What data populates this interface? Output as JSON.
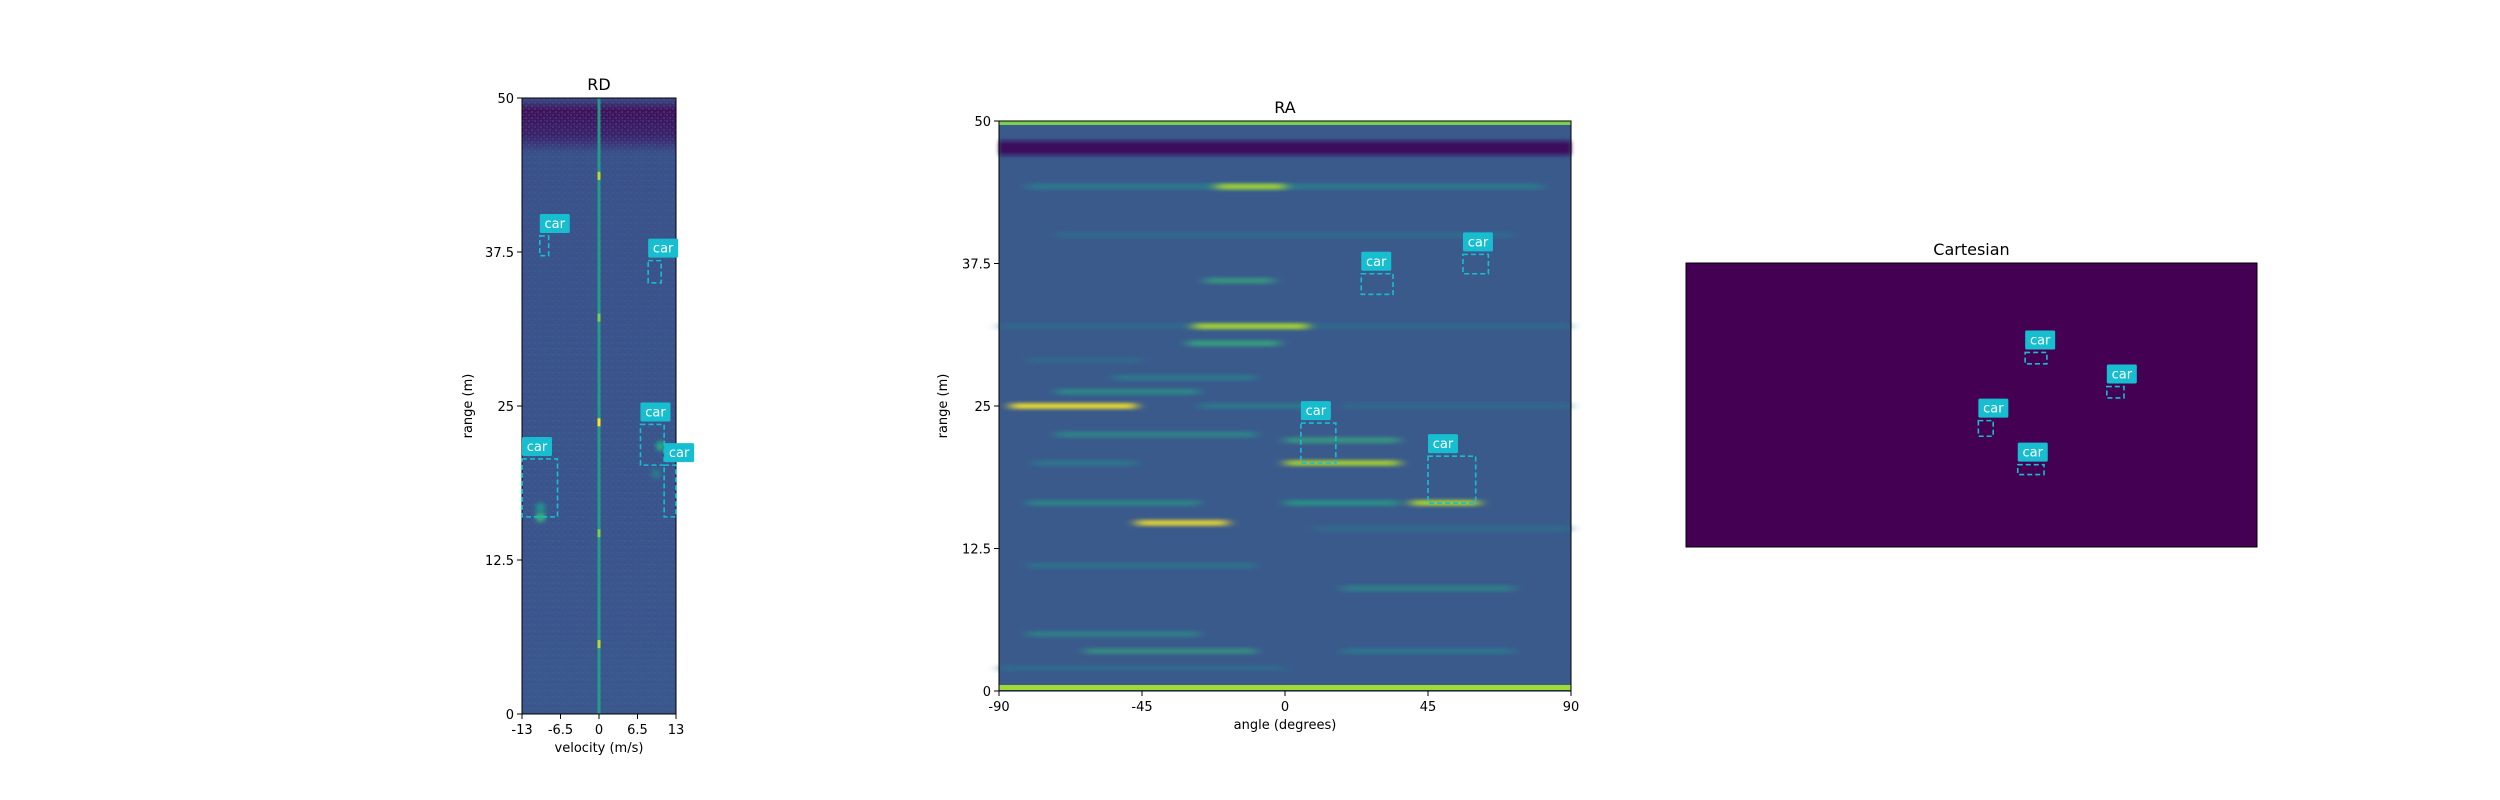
{
  "chart_data": [
    {
      "type": "heatmap",
      "title": "RD",
      "xlabel": "velocity (m/s)",
      "ylabel": "range (m)",
      "xlim": [
        -13,
        13
      ],
      "ylim": [
        0,
        50
      ],
      "xticks": [
        -13,
        -6.5,
        0,
        6.5,
        13
      ],
      "xtick_labels": [
        "-13",
        "-6.5",
        "0",
        "6.5",
        "13"
      ],
      "yticks": [
        0,
        12.5,
        25,
        37.5,
        50
      ],
      "ytick_labels": [
        "0",
        "12.5",
        "25",
        "37.5",
        "50"
      ],
      "colormap": "viridis",
      "detections": [
        {
          "label": "car",
          "x": [
            -10,
            -8.5
          ],
          "y": [
            37.2,
            38.8
          ],
          "color": "#17becf"
        },
        {
          "label": "car",
          "x": [
            8.3,
            10.5
          ],
          "y": [
            35,
            36.8
          ],
          "color": "#17becf"
        },
        {
          "label": "car",
          "x": [
            7,
            11
          ],
          "y": [
            20.2,
            23.5
          ],
          "color": "#17becf"
        },
        {
          "label": "car",
          "x": [
            -13,
            -7
          ],
          "y": [
            16,
            20.7
          ],
          "color": "#17becf"
        },
        {
          "label": "car",
          "x": [
            11,
            13
          ],
          "y": [
            16,
            20.2
          ],
          "color": "#17becf"
        }
      ]
    },
    {
      "type": "heatmap",
      "title": "RA",
      "xlabel": "angle (degrees)",
      "ylabel": "range (m)",
      "xlim": [
        -90,
        90
      ],
      "ylim": [
        0,
        50
      ],
      "xticks": [
        -90,
        -45,
        0,
        45,
        90
      ],
      "xtick_labels": [
        "-90",
        "-45",
        "0",
        "45",
        "90"
      ],
      "yticks": [
        0,
        12.5,
        25,
        37.5,
        50
      ],
      "ytick_labels": [
        "0",
        "12.5",
        "25",
        "37.5",
        "50"
      ],
      "colormap": "viridis",
      "detections": [
        {
          "label": "car",
          "x": [
            24,
            34
          ],
          "y": [
            34.8,
            36.6
          ],
          "color": "#17becf"
        },
        {
          "label": "car",
          "x": [
            56,
            64
          ],
          "y": [
            36.6,
            38.3
          ],
          "color": "#17becf"
        },
        {
          "label": "car",
          "x": [
            5,
            16
          ],
          "y": [
            20,
            23.5
          ],
          "color": "#17becf"
        },
        {
          "label": "car",
          "x": [
            45,
            60
          ],
          "y": [
            16.5,
            20.6
          ],
          "color": "#17becf"
        }
      ]
    },
    {
      "type": "heatmap",
      "title": "Cartesian",
      "colormap": "viridis",
      "detections": [
        {
          "label": "car",
          "x": [
            0.594,
            0.632
          ],
          "y": [
            0.645,
            0.685
          ],
          "color": "#17becf"
        },
        {
          "label": "car",
          "x": [
            0.737,
            0.767
          ],
          "y": [
            0.525,
            0.565
          ],
          "color": "#17becf"
        },
        {
          "label": "car",
          "x": [
            0.512,
            0.538
          ],
          "y": [
            0.39,
            0.445
          ],
          "color": "#17becf"
        },
        {
          "label": "car",
          "x": [
            0.581,
            0.627
          ],
          "y": [
            0.255,
            0.29
          ],
          "color": "#17becf"
        }
      ]
    }
  ]
}
